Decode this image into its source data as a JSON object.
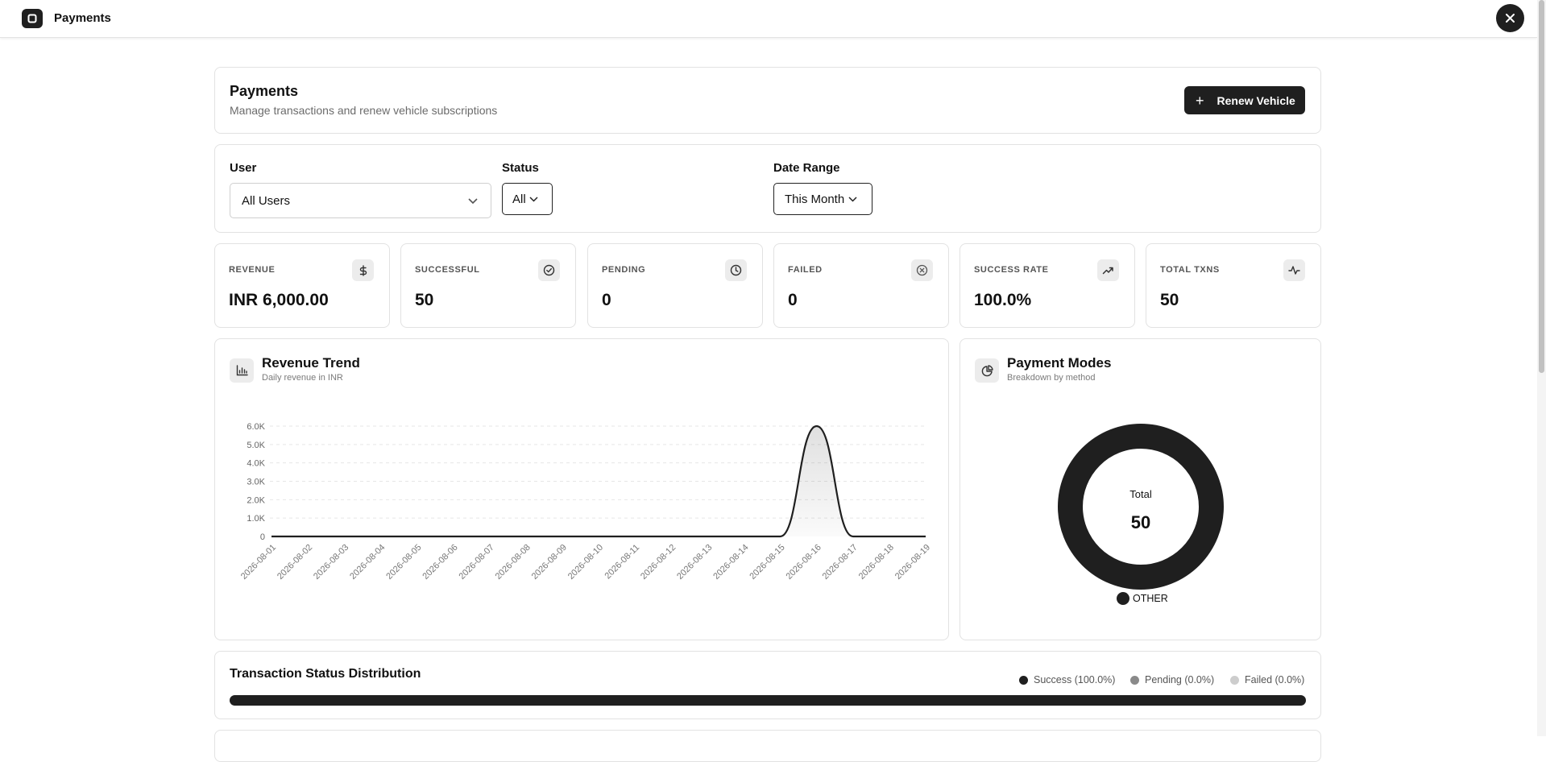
{
  "app": {
    "title": "Payments"
  },
  "header": {
    "title": "Payments",
    "subtitle": "Manage transactions and renew vehicle subscriptions",
    "renew_label": "Renew Vehicle"
  },
  "filters": {
    "user_label": "User",
    "user_value": "All Users",
    "status_label": "Status",
    "status_value": "All",
    "date_label": "Date Range",
    "date_value": "This Month"
  },
  "kpis": [
    {
      "label": "REVENUE",
      "value": "INR 6,000.00",
      "icon": "dollar-icon"
    },
    {
      "label": "SUCCESSFUL",
      "value": "50",
      "icon": "check-circle-icon"
    },
    {
      "label": "PENDING",
      "value": "0",
      "icon": "clock-icon"
    },
    {
      "label": "FAILED",
      "value": "0",
      "icon": "x-circle-icon"
    },
    {
      "label": "SUCCESS RATE",
      "value": "100.0%",
      "icon": "trending-up-icon"
    },
    {
      "label": "TOTAL TXNS",
      "value": "50",
      "icon": "activity-icon"
    }
  ],
  "revenue_trend": {
    "title": "Revenue Trend",
    "subtitle": "Daily revenue in INR"
  },
  "payment_modes": {
    "title": "Payment Modes",
    "subtitle": "Breakdown by method",
    "center_label": "Total",
    "center_value": "50",
    "legend": [
      "OTHER"
    ]
  },
  "distribution": {
    "title": "Transaction Status Distribution",
    "legend": [
      {
        "label": "Success (100.0%)",
        "color": "#1f1f1f"
      },
      {
        "label": "Pending (0.0%)",
        "color": "#8a8a8a"
      },
      {
        "label": "Failed (0.0%)",
        "color": "#cdcdcd"
      }
    ],
    "success_fraction": 1.0
  },
  "chart_data": [
    {
      "type": "area",
      "title": "Revenue Trend",
      "x": [
        "2026-08-01",
        "2026-08-02",
        "2026-08-03",
        "2026-08-04",
        "2026-08-05",
        "2026-08-06",
        "2026-08-07",
        "2026-08-08",
        "2026-08-09",
        "2026-08-10",
        "2026-08-11",
        "2026-08-12",
        "2026-08-13",
        "2026-08-14",
        "2026-08-15",
        "2026-08-16",
        "2026-08-17",
        "2026-08-18",
        "2026-08-19"
      ],
      "series": [
        {
          "values": [
            0,
            0,
            0,
            0,
            0,
            0,
            0,
            0,
            0,
            0,
            0,
            0,
            0,
            0,
            0,
            6000,
            0,
            0,
            0
          ]
        }
      ],
      "yticks": [
        "0",
        "1.0K",
        "2.0K",
        "3.0K",
        "4.0K",
        "5.0K",
        "6.0K"
      ],
      "ylim": [
        0,
        6000
      ],
      "grid": true
    },
    {
      "type": "pie",
      "title": "Payment Modes",
      "categories": [
        "OTHER"
      ],
      "values": [
        50
      ],
      "colors": [
        "#1f1f1f"
      ]
    }
  ],
  "colors": {
    "primary": "#1f1f1f",
    "muted": "#6b6b6b",
    "border": "#e2e2e2"
  }
}
